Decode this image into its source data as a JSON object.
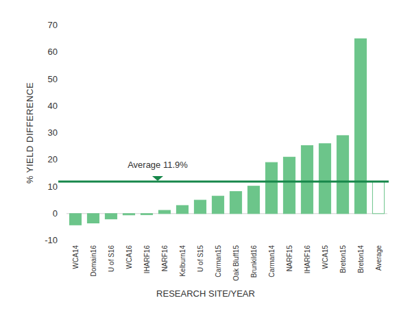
{
  "chart_data": {
    "type": "bar",
    "x_label": "RESEARCH SITE/YEAR",
    "y_label": "% YIELD DIFFERENCE",
    "categories": [
      "WCA14",
      "Domain16",
      "U of S16",
      "WCA16",
      "IHARF16",
      "NARF16",
      "Kelburn14",
      "U of S15",
      "Carman15",
      "Oak Bluff15",
      "Brunkild16",
      "Carman14",
      "NARF15",
      "IHARF16",
      "WCA15",
      "Breton15",
      "Breton14",
      "Average"
    ],
    "values": [
      -4.2,
      -3.5,
      -2,
      -0.5,
      -0.4,
      1.2,
      3,
      5,
      6.5,
      8.2,
      10.2,
      19,
      21,
      25.3,
      26,
      29,
      65,
      11.9
    ],
    "color": "#6cc58a",
    "colors": [
      "#6cc58a",
      "#6cc58a",
      "#6cc58a",
      "#6cc58a",
      "#6cc58a",
      "#6cc58a",
      "#6cc58a",
      "#6cc58a",
      "#6cc58a",
      "#6cc58a",
      "#6cc58a",
      "#6cc58a",
      "#6cc58a",
      "#6cc58a",
      "#6cc58a",
      "#6cc58a",
      "#6cc58a",
      "#ffffff"
    ],
    "reference_line": {
      "value": 11.9,
      "label": "Average 11.9%",
      "color": "#17874a"
    },
    "ylim": [
      -10,
      70
    ],
    "yticks": [
      -10,
      0,
      10,
      20,
      30,
      40,
      50,
      60,
      70
    ],
    "grid": false
  }
}
